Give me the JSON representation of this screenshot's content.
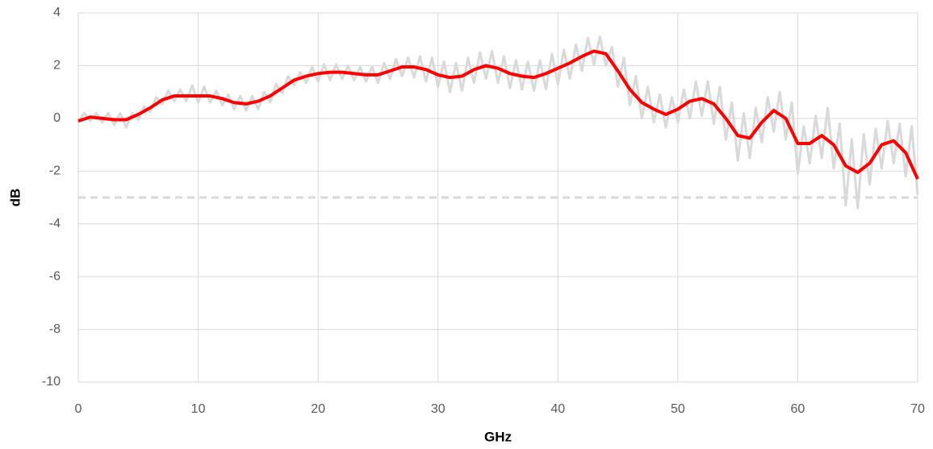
{
  "chart_data": {
    "type": "line",
    "x_label": "GHz",
    "y_label": "dB",
    "xlim": [
      0,
      70
    ],
    "xticks": [
      0,
      10,
      20,
      30,
      40,
      50,
      60,
      70
    ],
    "ylim": [
      -10,
      4
    ],
    "yticks": [
      -10,
      -8,
      -6,
      -4,
      -2,
      0,
      2,
      4
    ],
    "grid": true,
    "reference_lines": [
      {
        "value": -3,
        "color": "#d9d9d9",
        "dashed": true
      }
    ],
    "series": [
      {
        "color": "#d9d9d9",
        "width": 3,
        "x": [
          0,
          0.5,
          1,
          1.5,
          2,
          2.5,
          3,
          3.5,
          4,
          4.5,
          5,
          5.5,
          6,
          6.5,
          7,
          7.5,
          8,
          8.5,
          9,
          9.5,
          10,
          10.5,
          11,
          11.5,
          12,
          12.5,
          13,
          13.5,
          14,
          14.5,
          15,
          15.5,
          16,
          16.5,
          17,
          17.5,
          18,
          18.5,
          19,
          19.5,
          20,
          20.5,
          21,
          21.5,
          22,
          22.5,
          23,
          23.5,
          24,
          24.5,
          25,
          25.5,
          26,
          26.5,
          27,
          27.5,
          28,
          28.5,
          29,
          29.5,
          30,
          30.5,
          31,
          31.5,
          32,
          32.5,
          33,
          33.5,
          34,
          34.5,
          35,
          35.5,
          36,
          36.5,
          37,
          37.5,
          38,
          38.5,
          39,
          39.5,
          40,
          40.5,
          41,
          41.5,
          42,
          42.5,
          43,
          43.5,
          44,
          44.5,
          45,
          45.5,
          46,
          46.5,
          47,
          47.5,
          48,
          48.5,
          49,
          49.5,
          50,
          50.5,
          51,
          51.5,
          52,
          52.5,
          53,
          53.5,
          54,
          54.5,
          55,
          55.5,
          56,
          56.5,
          57,
          57.5,
          58,
          58.5,
          59,
          59.5,
          60,
          60.5,
          61,
          61.5,
          62,
          62.5,
          63,
          63.5,
          64,
          64.5,
          65,
          65.5,
          66,
          66.5,
          67,
          67.5,
          68,
          68.5,
          69,
          69.5,
          70
        ],
        "values": [
          -0.1,
          0.2,
          -0.1,
          0.2,
          -0.15,
          0.2,
          -0.25,
          0.2,
          -0.35,
          0.2,
          -0.05,
          0.45,
          0.25,
          0.8,
          0.55,
          1.05,
          0.65,
          1.1,
          0.65,
          1.25,
          0.6,
          1.2,
          0.6,
          1.05,
          0.5,
          0.9,
          0.35,
          0.85,
          0.3,
          0.85,
          0.35,
          1.0,
          0.6,
          1.3,
          0.95,
          1.6,
          1.25,
          1.75,
          1.35,
          1.95,
          1.4,
          2.05,
          1.45,
          2.05,
          1.5,
          2.0,
          1.45,
          1.95,
          1.4,
          1.95,
          1.35,
          2.1,
          1.5,
          2.25,
          1.6,
          2.3,
          1.55,
          2.35,
          1.4,
          2.3,
          1.2,
          2.15,
          1.0,
          2.1,
          1.05,
          2.3,
          1.35,
          2.5,
          1.5,
          2.55,
          1.35,
          2.35,
          1.15,
          2.2,
          1.1,
          2.15,
          1.05,
          2.2,
          1.1,
          2.45,
          1.3,
          2.6,
          1.5,
          2.8,
          1.8,
          3.05,
          2.05,
          3.1,
          2.0,
          2.7,
          1.2,
          2.3,
          0.5,
          1.6,
          0.0,
          1.2,
          -0.15,
          0.9,
          -0.35,
          0.8,
          -0.15,
          1.1,
          0.0,
          1.4,
          0.1,
          1.4,
          -0.2,
          1.2,
          -0.8,
          0.6,
          -1.6,
          0.2,
          -1.5,
          0.4,
          -0.9,
          0.8,
          -0.5,
          1.0,
          -0.8,
          0.6,
          -2.1,
          -0.3,
          -1.7,
          0.1,
          -1.5,
          0.4,
          -1.9,
          -0.2,
          -3.3,
          -0.8,
          -3.4,
          -0.6,
          -2.5,
          -0.4,
          -1.9,
          -0.1,
          -1.7,
          -0.2,
          -2.2,
          -0.3,
          -2.9
        ]
      },
      {
        "color": "#ff0000",
        "width": 4,
        "x": [
          0,
          1,
          2,
          3,
          4,
          5,
          6,
          7,
          8,
          9,
          10,
          11,
          12,
          13,
          14,
          15,
          16,
          17,
          18,
          19,
          20,
          21,
          22,
          23,
          24,
          25,
          26,
          27,
          28,
          29,
          30,
          31,
          32,
          33,
          34,
          35,
          36,
          37,
          38,
          39,
          40,
          41,
          42,
          43,
          44,
          45,
          46,
          47,
          48,
          49,
          50,
          51,
          52,
          53,
          54,
          55,
          56,
          57,
          58,
          59,
          60,
          61,
          62,
          63,
          64,
          65,
          66,
          67,
          68,
          69,
          70
        ],
        "values": [
          -0.1,
          0.05,
          0,
          -0.05,
          -0.05,
          0.15,
          0.4,
          0.7,
          0.85,
          0.85,
          0.85,
          0.85,
          0.75,
          0.6,
          0.55,
          0.65,
          0.85,
          1.15,
          1.45,
          1.6,
          1.7,
          1.75,
          1.75,
          1.7,
          1.65,
          1.65,
          1.8,
          1.95,
          1.95,
          1.85,
          1.65,
          1.55,
          1.6,
          1.85,
          2.0,
          1.9,
          1.7,
          1.6,
          1.55,
          1.7,
          1.9,
          2.1,
          2.35,
          2.55,
          2.45,
          1.8,
          1.1,
          0.6,
          0.35,
          0.15,
          0.35,
          0.65,
          0.75,
          0.55,
          0.0,
          -0.65,
          -0.75,
          -0.15,
          0.3,
          0,
          -0.95,
          -0.95,
          -0.65,
          -1.0,
          -1.8,
          -2.05,
          -1.7,
          -1.0,
          -0.85,
          -1.3,
          -2.3
        ]
      }
    ]
  }
}
